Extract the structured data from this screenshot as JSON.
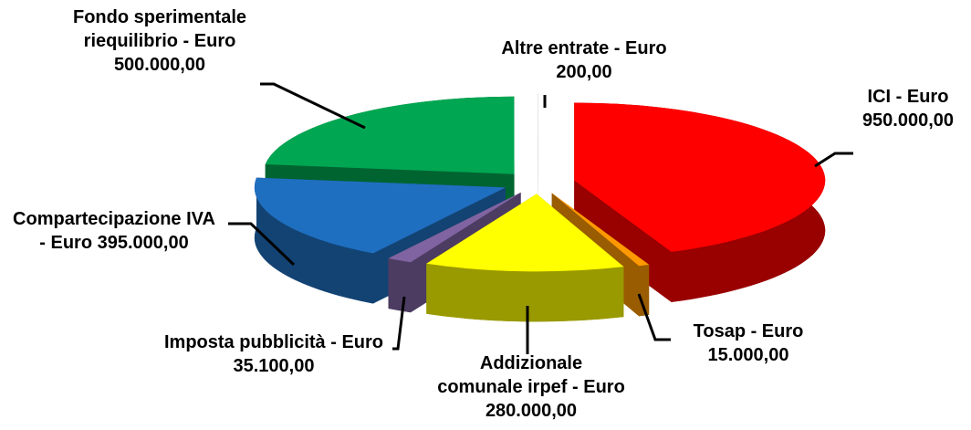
{
  "chart_data": {
    "type": "pie3d",
    "values": [
      950000,
      15000,
      280000,
      35100,
      395000,
      500000,
      200
    ],
    "value_labels": [
      "ICI - Euro 950.000,00",
      "Tosap - Euro 15.000,00",
      "Addizionale comunale irpef - Euro 280.000,00",
      "Imposta pubblicità - Euro 35.100,00",
      "Compartecipazione IVA - Euro 395.000,00",
      "Fondo sperimentale riequilibrio - Euro 500.000,00",
      "Altre entrate - Euro 200,00"
    ],
    "colors": [
      "#ff0000",
      "#ff9900",
      "#ffff00",
      "#8064a2",
      "#1f6fc0",
      "#00a651",
      "#c0c0c0"
    ]
  }
}
